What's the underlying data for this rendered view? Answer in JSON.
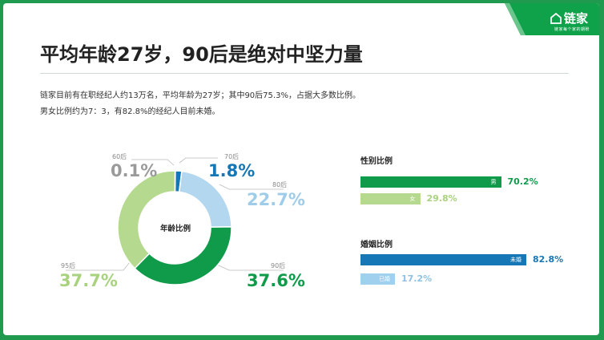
{
  "brand": {
    "name": "链家",
    "slogan": "链家每个家的期盼",
    "color": "#0fa24a"
  },
  "title": "平均年龄27岁，90后是绝对中坚力量",
  "description": [
    "链家目前有在职经纪人约13万名，平均年龄为27岁；其中90后75.3%，占据大多数比例。",
    "男女比例约为7：3，有82.8%的经纪人目前未婚。"
  ],
  "chart_data": [
    {
      "type": "pie",
      "title": "年龄比例",
      "categories": [
        "60后",
        "70后",
        "80后",
        "90后",
        "95后"
      ],
      "values": [
        0.1,
        1.8,
        22.7,
        37.6,
        37.7
      ],
      "value_labels": [
        "0.1%",
        "1.8%",
        "22.7%",
        "37.6%",
        "37.7%"
      ],
      "colors": [
        "#9a9a9a",
        "#1677b6",
        "#b3d7ef",
        "#0f9b4a",
        "#b5d98e"
      ]
    },
    {
      "type": "bar",
      "title": "性别比例",
      "categories": [
        "男",
        "女"
      ],
      "values": [
        70.2,
        29.8
      ],
      "value_labels": [
        "70.2%",
        "29.8%"
      ],
      "colors": [
        "#0f9b4a",
        "#b5d98e"
      ]
    },
    {
      "type": "bar",
      "title": "婚姻比例",
      "categories": [
        "未婚",
        "已婚"
      ],
      "values": [
        82.8,
        17.2
      ],
      "value_labels": [
        "82.8%",
        "17.2%"
      ],
      "colors": [
        "#1677b6",
        "#9fd0ee"
      ]
    }
  ]
}
